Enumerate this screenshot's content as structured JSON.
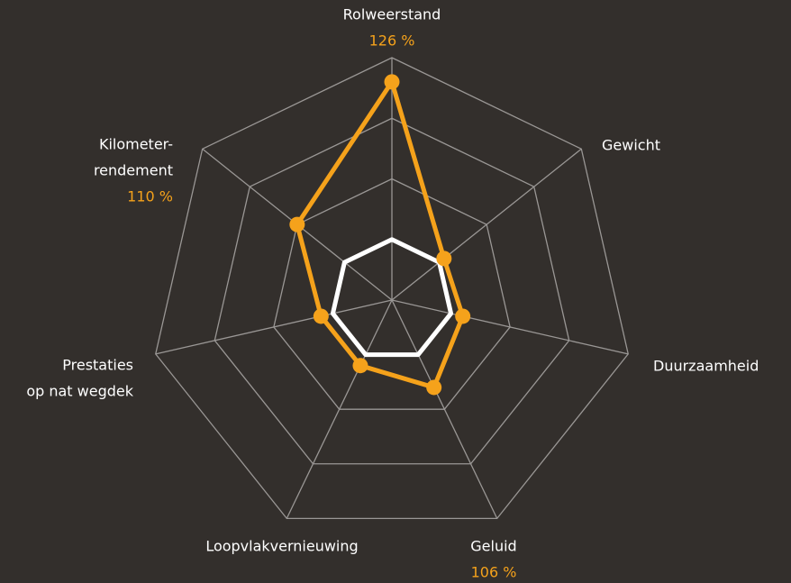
{
  "chart_data": {
    "type": "radar",
    "categories": [
      [
        "Rolweerstand"
      ],
      [
        "Gewicht"
      ],
      [
        "Duurzaamheid"
      ],
      [
        "Geluid"
      ],
      [
        "Loopvlakvernieuwing"
      ],
      [
        "Prestaties",
        "op nat wegdek"
      ],
      [
        "Kilometer-",
        "rendement"
      ]
    ],
    "rlim": [
      90,
      130
    ],
    "rticks": [
      100,
      110,
      120,
      130
    ],
    "grid": true,
    "grid_color": "#9a9795",
    "series": [
      {
        "color": "#ffffff",
        "values": [
          100,
          100,
          100,
          100,
          100,
          100,
          100
        ]
      },
      {
        "color": "#f5a21b",
        "values": [
          126,
          101,
          102,
          106,
          102,
          102,
          110
        ],
        "value_labels": [
          "126 %",
          null,
          null,
          "106 %",
          null,
          null,
          "110 %"
        ]
      }
    ]
  }
}
